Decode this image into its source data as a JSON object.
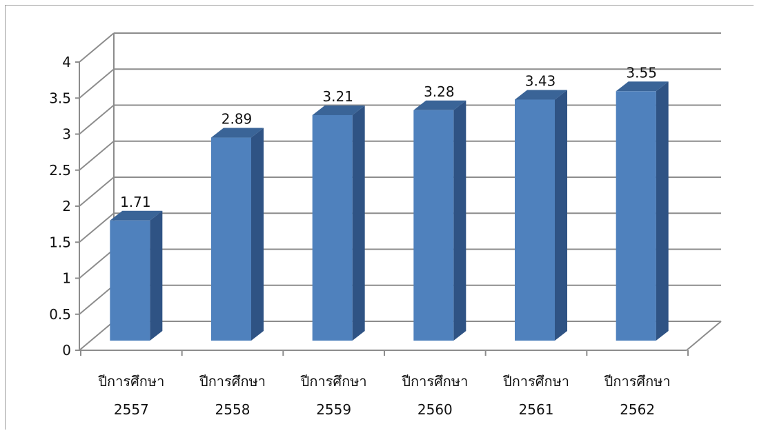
{
  "chart_data": {
    "type": "bar",
    "categories": [
      [
        "ปีการศึกษา",
        "2557"
      ],
      [
        "ปีการศึกษา",
        "2558"
      ],
      [
        "ปีการศึกษา",
        "2559"
      ],
      [
        "ปีการศึกษา",
        "2560"
      ],
      [
        "ปีการศึกษา",
        "2561"
      ],
      [
        "ปีการศึกษา",
        "2562"
      ]
    ],
    "values": [
      1.71,
      2.89,
      3.21,
      3.28,
      3.43,
      3.55
    ],
    "value_labels": [
      "1.71",
      "2.89",
      "3.21",
      "3.28",
      "3.43",
      "3.55"
    ],
    "y_ticks": [
      "0",
      "0.5",
      "1",
      "1.5",
      "2",
      "2.5",
      "3",
      "3.5",
      "4"
    ],
    "ylim": [
      0,
      4
    ],
    "grid": true,
    "legend": "none",
    "colors": {
      "bar_front": "#4f81bd",
      "bar_side": "#2f5384",
      "bar_top": "#3a6497",
      "grid": "#8c8c8c"
    }
  }
}
